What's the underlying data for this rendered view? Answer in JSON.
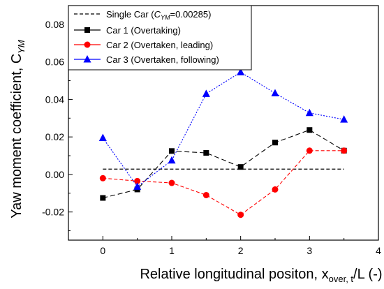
{
  "chart_data": {
    "type": "line",
    "xlabel_main": "Relative longitudinal positon, x",
    "xlabel_sub": "over, t",
    "xlabel_tail": "/L (-)",
    "ylabel_main": "Yaw moment coefficient, C",
    "ylabel_sub": "YM",
    "xlim": [
      -0.5,
      4
    ],
    "ylim": [
      -0.035,
      0.09
    ],
    "x_ticks": [
      "0",
      "1",
      "2",
      "3",
      "4"
    ],
    "x_tick_values": [
      0,
      1,
      2,
      3,
      4
    ],
    "y_ticks": [
      "-0.02",
      "0.00",
      "0.02",
      "0.04",
      "0.06",
      "0.08"
    ],
    "y_tick_values": [
      -0.02,
      0.0,
      0.02,
      0.04,
      0.06,
      0.08
    ],
    "legend_position": "top-center",
    "grid": false,
    "reference": {
      "label_pre": "Single Car (",
      "label_sym": "C",
      "label_sub": "YM",
      "label_post": "=0.00285)",
      "value": 0.00285,
      "x_range": [
        0,
        3.5
      ],
      "color": "#000000"
    },
    "series": [
      {
        "name": "Car 1 (Overtaking)",
        "color": "#000000",
        "marker": "square",
        "x": [
          0,
          0.5,
          1,
          1.5,
          2,
          2.5,
          3,
          3.5
        ],
        "y": [
          -0.0125,
          -0.008,
          0.0125,
          0.0115,
          0.004,
          0.017,
          0.0237,
          0.0127
        ]
      },
      {
        "name": "Car 2 (Overtaken, leading)",
        "color": "#ff0000",
        "marker": "circle",
        "x": [
          0,
          0.5,
          1,
          1.5,
          2,
          2.5,
          3,
          3.5
        ],
        "y": [
          -0.002,
          -0.0035,
          -0.0045,
          -0.011,
          -0.0215,
          -0.008,
          0.0127,
          0.0127
        ]
      },
      {
        "name": "Car 3 (Overtaken, following)",
        "color": "#0000ff",
        "marker": "triangle",
        "x": [
          0,
          0.5,
          1,
          1.5,
          2,
          2.5,
          3,
          3.5
        ],
        "y": [
          0.0195,
          -0.0065,
          0.0075,
          0.043,
          0.0545,
          0.0433,
          0.0328,
          0.0293
        ]
      }
    ]
  }
}
